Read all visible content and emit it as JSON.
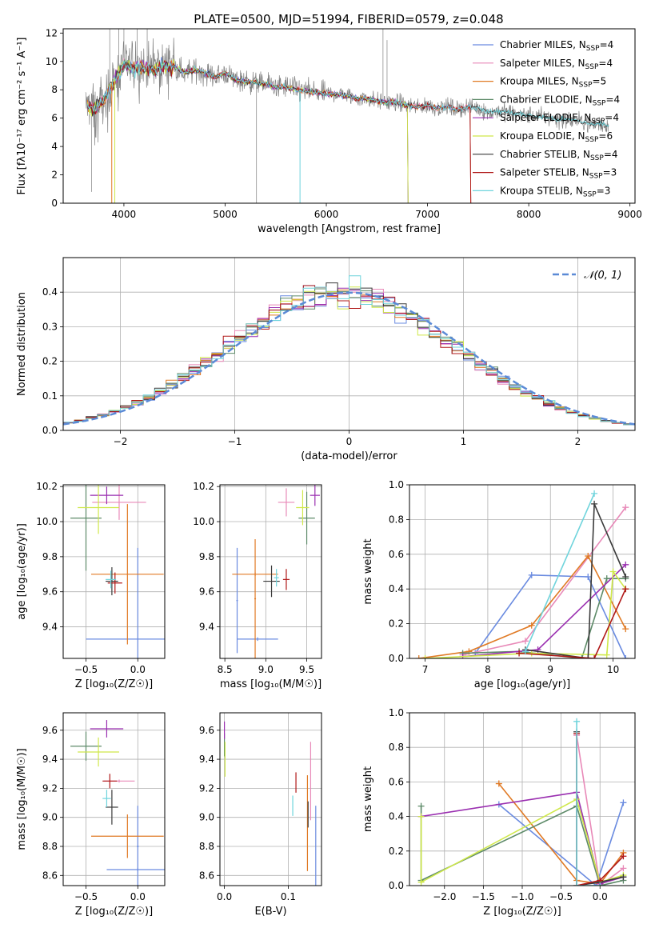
{
  "figure": {
    "title": "PLATE=0500, MJD=51994, FIBERID=0579, z=0.048"
  },
  "colors": {
    "Chabrier MILES": "#6a8be0",
    "Salpeter MILES": "#e889b8",
    "Kroupa MILES": "#e07a25",
    "Chabrier ELODIE": "#5d8a68",
    "Salpeter ELODIE": "#9a2fb0",
    "Kroupa ELODIE": "#cfe84a",
    "Chabrier STELIB": "#3a3a3a",
    "Salpeter STELIB": "#b01818",
    "Kroupa STELIB": "#6fd4dc",
    "data": "#808080",
    "normal": "#5b8ad6"
  },
  "chart_data": [
    {
      "id": "spectrum",
      "type": "line",
      "title": "PLATE=0500, MJD=51994, FIBERID=0579, z=0.048",
      "xlabel": "wavelength [Angstrom, rest frame]",
      "ylabel": "Flux [fλ10⁻¹⁷ erg cm⁻² s⁻¹ A⁻¹]",
      "xlim": [
        3400,
        9050
      ],
      "ylim": [
        0,
        12.3
      ],
      "xticks": [
        4000,
        5000,
        6000,
        7000,
        8000,
        9000
      ],
      "yticks": [
        0,
        2,
        4,
        6,
        8,
        10,
        12
      ],
      "grid": false,
      "legend_position": "top-right",
      "legend": [
        {
          "name": "Chabrier MILES",
          "nssp": "4"
        },
        {
          "name": "Salpeter MILES",
          "nssp": "4"
        },
        {
          "name": "Kroupa MILES",
          "nssp": "5"
        },
        {
          "name": "Chabrier ELODIE",
          "nssp": "4"
        },
        {
          "name": "Salpeter ELODIE",
          "nssp": "4"
        },
        {
          "name": "Kroupa ELODIE",
          "nssp": "6"
        },
        {
          "name": "Chabrier STELIB",
          "nssp": "4"
        },
        {
          "name": "Salpeter STELIB",
          "nssp": "3"
        },
        {
          "name": "Kroupa STELIB",
          "nssp": "3"
        }
      ],
      "data_envelope": [
        [
          3620,
          7.0
        ],
        [
          3700,
          6.6
        ],
        [
          3800,
          7.2
        ],
        [
          3900,
          8.6
        ],
        [
          4000,
          9.8
        ],
        [
          4100,
          9.5
        ],
        [
          4200,
          9.6
        ],
        [
          4300,
          9.3
        ],
        [
          4400,
          9.7
        ],
        [
          4500,
          9.6
        ],
        [
          4600,
          9.2
        ],
        [
          4700,
          9.4
        ],
        [
          4800,
          9.2
        ],
        [
          4900,
          8.9
        ],
        [
          5000,
          9.2
        ],
        [
          5100,
          8.7
        ],
        [
          5200,
          8.6
        ],
        [
          5300,
          8.5
        ],
        [
          5400,
          8.4
        ],
        [
          5500,
          8.2
        ],
        [
          5600,
          8.2
        ],
        [
          5700,
          8.0
        ],
        [
          5800,
          7.9
        ],
        [
          5900,
          7.8
        ],
        [
          6000,
          7.7
        ],
        [
          6100,
          7.7
        ],
        [
          6200,
          7.6
        ],
        [
          6300,
          7.4
        ],
        [
          6400,
          7.4
        ],
        [
          6500,
          7.2
        ],
        [
          6600,
          7.1
        ],
        [
          6700,
          7.1
        ],
        [
          6800,
          6.9
        ],
        [
          6900,
          6.8
        ],
        [
          7000,
          6.9
        ],
        [
          7100,
          6.7
        ],
        [
          7200,
          6.8
        ],
        [
          7300,
          6.6
        ],
        [
          7400,
          6.8
        ],
        [
          7500,
          6.7
        ],
        [
          7600,
          6.4
        ],
        [
          7700,
          6.5
        ],
        [
          7800,
          6.4
        ],
        [
          7900,
          6.3
        ],
        [
          8000,
          6.2
        ],
        [
          8100,
          6.1
        ],
        [
          8200,
          6.0
        ],
        [
          8300,
          5.9
        ],
        [
          8400,
          5.9
        ],
        [
          8500,
          5.8
        ],
        [
          8600,
          5.6
        ],
        [
          8700,
          5.6
        ],
        [
          8790,
          5.5
        ]
      ]
    },
    {
      "id": "residuals",
      "type": "histogram",
      "xlabel": "(data-model)/error",
      "ylabel": "Normed distribution",
      "xlim": [
        -2.5,
        2.5
      ],
      "ylim": [
        0,
        0.5
      ],
      "xticks": [
        -2,
        -1,
        0,
        1,
        2
      ],
      "yticks": [
        0.0,
        0.1,
        0.2,
        0.3,
        0.4
      ],
      "grid": true,
      "legend_position": "top-right",
      "legend": [
        {
          "name": "𝒩(0, 1)",
          "style": "dashed"
        }
      ],
      "bin_width": 0.1
    },
    {
      "id": "age-vs-Z",
      "type": "scatter",
      "xlabel": "Z [log₁₀(Z/Z☉)]",
      "ylabel": "age  [log₁₀(age/yr)]",
      "xlim": [
        -0.72,
        0.26
      ],
      "ylim": [
        9.22,
        10.21
      ],
      "xticks": [
        -0.5,
        0.0
      ],
      "yticks": [
        9.4,
        9.6,
        9.8,
        10.0,
        10.2
      ],
      "grid": true,
      "points": [
        {
          "model": "Chabrier MILES",
          "x": 0.0,
          "xerr": 0.5,
          "y": 9.33,
          "yerr": 0.52
        },
        {
          "model": "Salpeter MILES",
          "x": -0.18,
          "xerr": 0.26,
          "y": 10.11,
          "yerr": 0.1
        },
        {
          "model": "Kroupa MILES",
          "x": -0.1,
          "xerr": 0.35,
          "y": 9.7,
          "yerr": 0.4
        },
        {
          "model": "Chabrier ELODIE",
          "x": -0.5,
          "xerr": 0.15,
          "y": 10.02,
          "yerr": 0.3
        },
        {
          "model": "Salpeter ELODIE",
          "x": -0.3,
          "xerr": 0.16,
          "y": 10.15,
          "yerr": 0.05
        },
        {
          "model": "Kroupa ELODIE",
          "x": -0.38,
          "xerr": 0.2,
          "y": 10.08,
          "yerr": 0.15
        },
        {
          "model": "Chabrier STELIB",
          "x": -0.25,
          "xerr": 0.06,
          "y": 9.66,
          "yerr": 0.08
        },
        {
          "model": "Salpeter STELIB",
          "x": -0.22,
          "xerr": 0.07,
          "y": 9.65,
          "yerr": 0.06
        },
        {
          "model": "Kroupa STELIB",
          "x": -0.26,
          "xerr": 0.05,
          "y": 9.67,
          "yerr": 0.05
        }
      ]
    },
    {
      "id": "age-vs-mass",
      "type": "scatter",
      "xlabel": "mass [log₁₀(M/M☉)]",
      "ylabel": "",
      "xlim": [
        8.44,
        9.68
      ],
      "ylim": [
        9.22,
        10.21
      ],
      "xticks": [
        8.5,
        9.0,
        9.5
      ],
      "yticks": [
        9.4,
        9.6,
        9.8,
        10.0,
        10.2
      ],
      "grid": true,
      "points": [
        {
          "model": "Chabrier MILES",
          "x": 8.65,
          "xerr": 0.01,
          "y": 9.55,
          "yerr": 0.3
        },
        {
          "model": "Chabrier MILES",
          "x": 8.9,
          "xerr": 0.25,
          "y": 9.33,
          "yerr": 0.01
        },
        {
          "model": "Salpeter MILES",
          "x": 9.25,
          "xerr": 0.1,
          "y": 10.11,
          "yerr": 0.08
        },
        {
          "model": "Kroupa MILES",
          "x": 8.87,
          "xerr": 0.01,
          "y": 9.56,
          "yerr": 0.34
        },
        {
          "model": "Kroupa MILES",
          "x": 8.87,
          "xerr": 0.28,
          "y": 9.7,
          "yerr": 0.01
        },
        {
          "model": "Chabrier ELODIE",
          "x": 9.5,
          "xerr": 0.1,
          "y": 10.02,
          "yerr": 0.15
        },
        {
          "model": "Salpeter ELODIE",
          "x": 9.6,
          "xerr": 0.06,
          "y": 10.15,
          "yerr": 0.06
        },
        {
          "model": "Kroupa ELODIE",
          "x": 9.45,
          "xerr": 0.08,
          "y": 10.08,
          "yerr": 0.1
        },
        {
          "model": "Chabrier STELIB",
          "x": 9.07,
          "xerr": 0.1,
          "y": 9.66,
          "yerr": 0.09
        },
        {
          "model": "Salpeter STELIB",
          "x": 9.25,
          "xerr": 0.04,
          "y": 9.67,
          "yerr": 0.06
        },
        {
          "model": "Kroupa STELIB",
          "x": 9.13,
          "xerr": 0.03,
          "y": 9.68,
          "yerr": 0.05
        }
      ]
    },
    {
      "id": "weight-vs-age",
      "type": "line",
      "xlabel": "age  [log₁₀(age/yr)]",
      "ylabel": "mass weight",
      "xlim": [
        6.75,
        10.35
      ],
      "ylim": [
        0.0,
        1.0
      ],
      "xticks": [
        7,
        8,
        9,
        10
      ],
      "yticks": [
        0.0,
        0.2,
        0.4,
        0.6,
        0.8,
        1.0
      ],
      "grid": true,
      "series": [
        {
          "model": "Chabrier MILES",
          "points": [
            [
              7.8,
              0.03
            ],
            [
              8.7,
              0.48
            ],
            [
              9.6,
              0.47
            ],
            [
              10.2,
              0.0
            ]
          ]
        },
        {
          "model": "Salpeter MILES",
          "points": [
            [
              7.6,
              0.02
            ],
            [
              8.6,
              0.1
            ],
            [
              10.2,
              0.87
            ]
          ]
        },
        {
          "model": "Kroupa MILES",
          "points": [
            [
              6.9,
              0.0
            ],
            [
              7.7,
              0.04
            ],
            [
              8.7,
              0.19
            ],
            [
              9.6,
              0.59
            ],
            [
              10.2,
              0.17
            ]
          ]
        },
        {
          "model": "Chabrier ELODIE",
          "points": [
            [
              7.6,
              0.03
            ],
            [
              8.5,
              0.04
            ],
            [
              9.5,
              0.0
            ],
            [
              9.9,
              0.46
            ],
            [
              10.2,
              0.46
            ]
          ]
        },
        {
          "model": "Salpeter ELODIE",
          "points": [
            [
              7.6,
              0.01
            ],
            [
              8.8,
              0.05
            ],
            [
              10.2,
              0.54
            ]
          ]
        },
        {
          "model": "Kroupa ELODIE",
          "points": [
            [
              7.0,
              0.0
            ],
            [
              8.7,
              0.03
            ],
            [
              9.9,
              0.02
            ],
            [
              10.0,
              0.5
            ],
            [
              10.2,
              0.4
            ]
          ]
        },
        {
          "model": "Chabrier STELIB",
          "points": [
            [
              8.6,
              0.05
            ],
            [
              9.6,
              0.0
            ],
            [
              9.7,
              0.89
            ],
            [
              10.2,
              0.47
            ]
          ]
        },
        {
          "model": "Salpeter STELIB",
          "points": [
            [
              8.5,
              0.03
            ],
            [
              9.7,
              0.0
            ],
            [
              10.2,
              0.4
            ]
          ]
        },
        {
          "model": "Kroupa STELIB",
          "points": [
            [
              8.6,
              0.04
            ],
            [
              9.7,
              0.95
            ]
          ]
        }
      ]
    },
    {
      "id": "mass-vs-Z",
      "type": "scatter",
      "xlabel": "Z [log₁₀(Z/Z☉)]",
      "ylabel": "mass [log₁₀(M/M☉)]",
      "xlim": [
        -0.72,
        0.26
      ],
      "ylim": [
        8.53,
        9.72
      ],
      "xticks": [
        -0.5,
        0.0
      ],
      "yticks": [
        8.6,
        8.8,
        9.0,
        9.2,
        9.4,
        9.6
      ],
      "grid": true,
      "points": [
        {
          "model": "Chabrier MILES",
          "x": 0.0,
          "xerr": 0.3,
          "y": 8.64,
          "yerr": 0.01
        },
        {
          "model": "Chabrier MILES",
          "x": 0.0,
          "xerr": 0.01,
          "y": 8.8,
          "yerr": 0.28
        },
        {
          "model": "Salpeter MILES",
          "x": -0.18,
          "xerr": 0.15,
          "y": 9.25,
          "yerr": 0.01
        },
        {
          "model": "Kroupa MILES",
          "x": -0.1,
          "xerr": 0.35,
          "y": 8.87,
          "yerr": 0.15
        },
        {
          "model": "Chabrier ELODIE",
          "x": -0.5,
          "xerr": 0.15,
          "y": 9.49,
          "yerr": 0.1
        },
        {
          "model": "Salpeter ELODIE",
          "x": -0.3,
          "xerr": 0.16,
          "y": 9.61,
          "yerr": 0.06
        },
        {
          "model": "Kroupa ELODIE",
          "x": -0.38,
          "xerr": 0.2,
          "y": 9.45,
          "yerr": 0.1
        },
        {
          "model": "Chabrier STELIB",
          "x": -0.25,
          "xerr": 0.06,
          "y": 9.07,
          "yerr": 0.12
        },
        {
          "model": "Salpeter STELIB",
          "x": -0.27,
          "xerr": 0.07,
          "y": 9.25,
          "yerr": 0.05
        },
        {
          "model": "Kroupa STELIB",
          "x": -0.3,
          "xerr": 0.04,
          "y": 9.13,
          "yerr": 0.06
        }
      ]
    },
    {
      "id": "mass-vs-ebv",
      "type": "scatter",
      "xlabel": "E(B-V)",
      "ylabel": "",
      "xlim": [
        -0.007,
        0.152
      ],
      "ylim": [
        8.53,
        9.72
      ],
      "xticks": [
        0.0,
        0.1
      ],
      "yticks": [
        8.6,
        8.8,
        9.0,
        9.2,
        9.4,
        9.6
      ],
      "grid": true,
      "points": [
        {
          "model": "Chabrier MILES",
          "x": 0.143,
          "xerr": 0.0,
          "y": 8.8,
          "yerr": 0.28
        },
        {
          "model": "Salpeter MILES",
          "x": 0.135,
          "xerr": 0.0,
          "y": 9.25,
          "yerr": 0.27
        },
        {
          "model": "Kroupa MILES",
          "x": 0.13,
          "xerr": 0.0,
          "y": 8.96,
          "yerr": 0.33
        },
        {
          "model": "Chabrier ELODIE",
          "x": 0.0,
          "xerr": 0.0,
          "y": 9.5,
          "yerr": 0.08
        },
        {
          "model": "Salpeter ELODIE",
          "x": 0.0,
          "xerr": 0.0,
          "y": 9.6,
          "yerr": 0.06
        },
        {
          "model": "Kroupa ELODIE",
          "x": 0.001,
          "xerr": 0.0,
          "y": 9.4,
          "yerr": 0.12
        },
        {
          "model": "Chabrier STELIB",
          "x": 0.131,
          "xerr": 0.0,
          "y": 9.02,
          "yerr": 0.09
        },
        {
          "model": "Salpeter STELIB",
          "x": 0.112,
          "xerr": 0.0,
          "y": 9.24,
          "yerr": 0.07
        },
        {
          "model": "Kroupa STELIB",
          "x": 0.107,
          "xerr": 0.0,
          "y": 9.08,
          "yerr": 0.07
        }
      ]
    },
    {
      "id": "weight-vs-Z",
      "type": "line",
      "xlabel": "Z [log₁₀(Z/Z☉)]",
      "ylabel": "mass weight",
      "xlim": [
        -2.45,
        0.45
      ],
      "ylim": [
        0.0,
        1.0
      ],
      "xticks": [
        -2.0,
        -1.5,
        -1.0,
        -0.5,
        0.0
      ],
      "yticks": [
        0.0,
        0.2,
        0.4,
        0.6,
        0.8,
        1.0
      ],
      "grid": true,
      "series": [
        {
          "model": "Chabrier MILES",
          "points": [
            [
              -1.3,
              0.47
            ],
            [
              -0.05,
              0.0
            ],
            [
              0.3,
              0.48
            ]
          ]
        },
        {
          "model": "Salpeter MILES",
          "points": [
            [
              -0.3,
              0.87
            ],
            [
              0.0,
              0.0
            ],
            [
              0.3,
              0.1
            ]
          ]
        },
        {
          "model": "Kroupa MILES",
          "points": [
            [
              -1.3,
              0.59
            ],
            [
              -0.3,
              0.03
            ],
            [
              0.0,
              0.01
            ],
            [
              0.3,
              0.19
            ]
          ]
        },
        {
          "model": "Chabrier ELODIE",
          "points": [
            [
              -2.3,
              0.46
            ],
            [
              -2.3,
              0.03
            ],
            [
              -0.3,
              0.46
            ],
            [
              0.0,
              0.0
            ],
            [
              0.3,
              0.03
            ]
          ]
        },
        {
          "model": "Salpeter ELODIE",
          "points": [
            [
              -2.3,
              0.4
            ],
            [
              -0.3,
              0.54
            ],
            [
              0.0,
              0.01
            ],
            [
              0.3,
              0.05
            ]
          ]
        },
        {
          "model": "Kroupa ELODIE",
          "points": [
            [
              -2.3,
              0.4
            ],
            [
              -2.3,
              0.02
            ],
            [
              -0.3,
              0.5
            ],
            [
              0.0,
              0.02
            ],
            [
              0.3,
              0.06
            ]
          ]
        },
        {
          "model": "Chabrier STELIB",
          "points": [
            [
              -0.3,
              0.89
            ],
            [
              -0.3,
              0.0
            ],
            [
              0.0,
              0.02
            ],
            [
              0.3,
              0.05
            ]
          ]
        },
        {
          "model": "Salpeter STELIB",
          "points": [
            [
              -0.3,
              0.88
            ],
            [
              -0.3,
              0.0
            ],
            [
              0.0,
              0.03
            ],
            [
              0.3,
              0.17
            ]
          ]
        },
        {
          "model": "Kroupa STELIB",
          "points": [
            [
              -0.3,
              0.95
            ],
            [
              -0.3,
              0.0
            ],
            [
              0.0,
              0.0
            ]
          ]
        }
      ]
    }
  ]
}
